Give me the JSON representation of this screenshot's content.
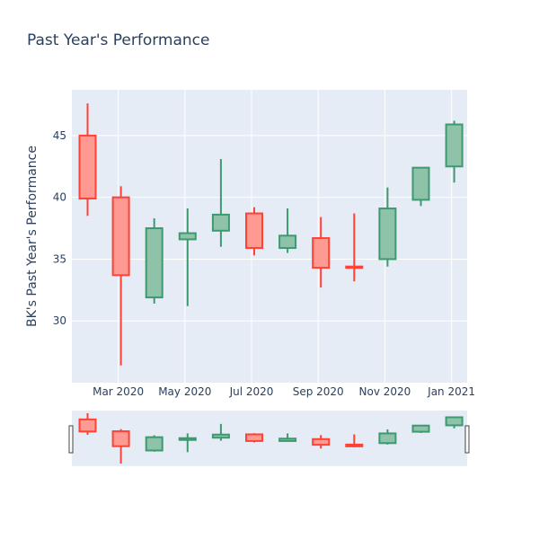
{
  "chart_data": {
    "type": "candlestick",
    "title": "Past Year's Performance",
    "ylabel": "BK's Past Year's Performance",
    "xlabel": "",
    "ylim": [
      25,
      48.7
    ],
    "grid": true,
    "legend": false,
    "x_tick_labels": [
      {
        "label": "Mar 2020",
        "month_index": 1.0
      },
      {
        "label": "May 2020",
        "month_index": 3.0
      },
      {
        "label": "Jul 2020",
        "month_index": 5.0
      },
      {
        "label": "Sep 2020",
        "month_index": 7.0
      },
      {
        "label": "Nov 2020",
        "month_index": 9.0
      },
      {
        "label": "Jan 2021",
        "month_index": 11.0
      }
    ],
    "y_ticks": [
      30,
      35,
      40,
      45
    ],
    "months": [
      "Feb 2020",
      "Mar 2020",
      "Apr 2020",
      "May 2020",
      "Jun 2020",
      "Jul 2020",
      "Aug 2020",
      "Sep 2020",
      "Oct 2020",
      "Nov 2020",
      "Dec 2020",
      "Jan 2021"
    ],
    "open": [
      45.0,
      40.0,
      31.9,
      36.6,
      37.3,
      38.7,
      35.9,
      36.7,
      34.4,
      35.0,
      39.8,
      42.5
    ],
    "high": [
      47.6,
      40.9,
      38.3,
      39.1,
      43.1,
      39.2,
      39.1,
      38.4,
      38.7,
      40.8,
      42.4,
      46.2
    ],
    "low": [
      38.5,
      26.4,
      31.4,
      31.2,
      36.0,
      35.3,
      35.5,
      32.7,
      33.2,
      34.4,
      39.3,
      41.2
    ],
    "close": [
      39.9,
      33.7,
      37.5,
      37.1,
      38.6,
      35.9,
      36.9,
      34.3,
      34.3,
      39.1,
      42.4,
      45.9
    ],
    "colors": {
      "increasing": "#3d9970",
      "increasing_fill": "#8ec3a9",
      "decreasing": "#ff4136",
      "decreasing_fill": "#ff9a92",
      "plot_bg": "#e5ecf6",
      "grid": "#ffffff",
      "text": "#2a3f5f"
    },
    "rangeslider": true
  }
}
